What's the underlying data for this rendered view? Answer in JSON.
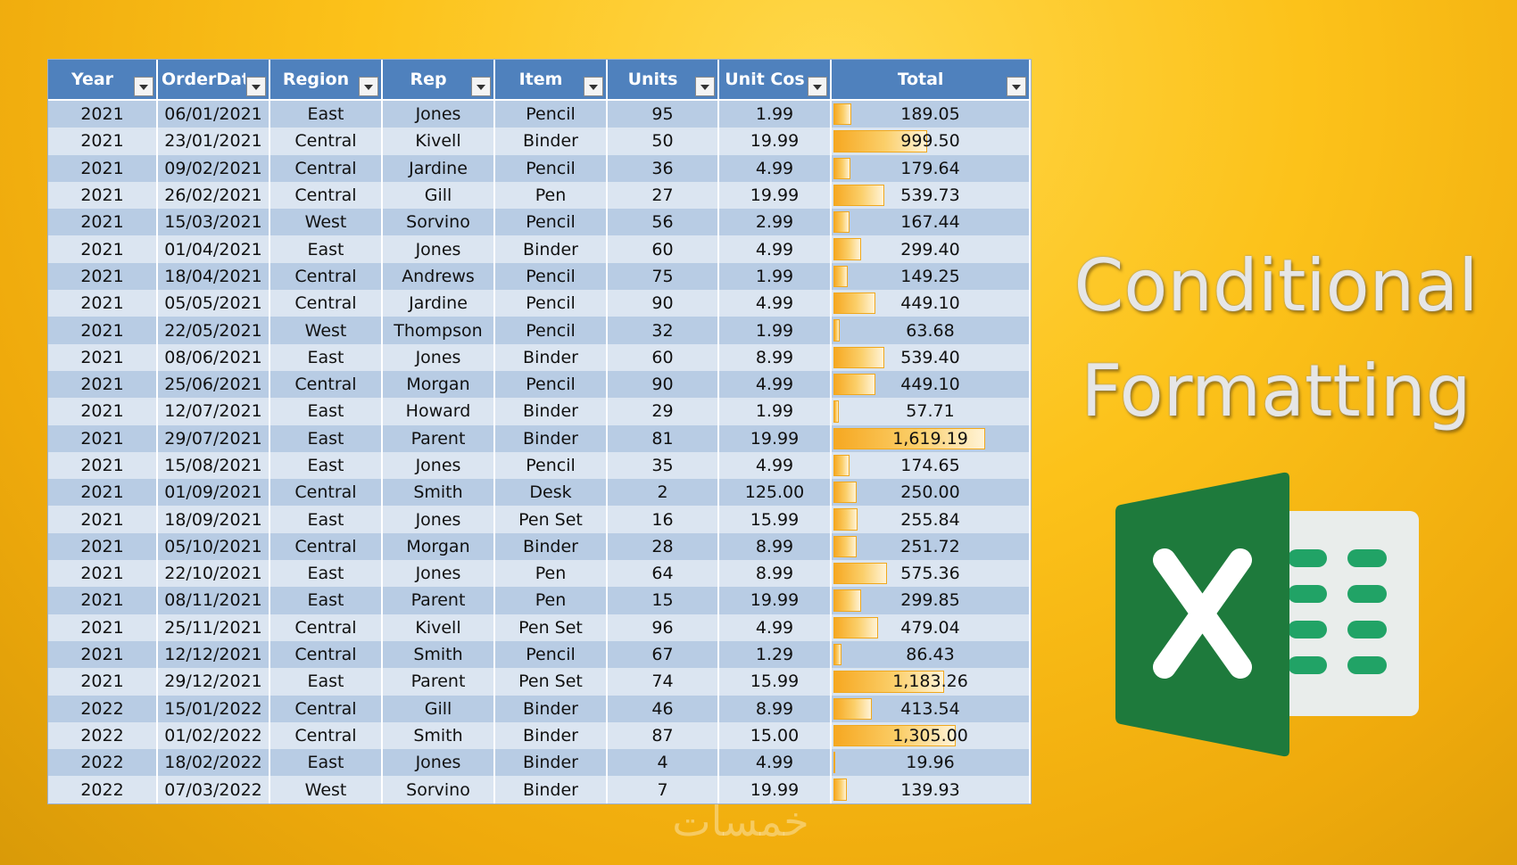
{
  "headers": [
    "Year",
    "OrderDat",
    "Region",
    "Rep",
    "Item",
    "Units",
    "Unit Cos",
    "Total"
  ],
  "rows": [
    [
      "2021",
      "06/01/2021",
      "East",
      "Jones",
      "Pencil",
      "95",
      "1.99",
      "189.05"
    ],
    [
      "2021",
      "23/01/2021",
      "Central",
      "Kivell",
      "Binder",
      "50",
      "19.99",
      "999.50"
    ],
    [
      "2021",
      "09/02/2021",
      "Central",
      "Jardine",
      "Pencil",
      "36",
      "4.99",
      "179.64"
    ],
    [
      "2021",
      "26/02/2021",
      "Central",
      "Gill",
      "Pen",
      "27",
      "19.99",
      "539.73"
    ],
    [
      "2021",
      "15/03/2021",
      "West",
      "Sorvino",
      "Pencil",
      "56",
      "2.99",
      "167.44"
    ],
    [
      "2021",
      "01/04/2021",
      "East",
      "Jones",
      "Binder",
      "60",
      "4.99",
      "299.40"
    ],
    [
      "2021",
      "18/04/2021",
      "Central",
      "Andrews",
      "Pencil",
      "75",
      "1.99",
      "149.25"
    ],
    [
      "2021",
      "05/05/2021",
      "Central",
      "Jardine",
      "Pencil",
      "90",
      "4.99",
      "449.10"
    ],
    [
      "2021",
      "22/05/2021",
      "West",
      "Thompson",
      "Pencil",
      "32",
      "1.99",
      "63.68"
    ],
    [
      "2021",
      "08/06/2021",
      "East",
      "Jones",
      "Binder",
      "60",
      "8.99",
      "539.40"
    ],
    [
      "2021",
      "25/06/2021",
      "Central",
      "Morgan",
      "Pencil",
      "90",
      "4.99",
      "449.10"
    ],
    [
      "2021",
      "12/07/2021",
      "East",
      "Howard",
      "Binder",
      "29",
      "1.99",
      "57.71"
    ],
    [
      "2021",
      "29/07/2021",
      "East",
      "Parent",
      "Binder",
      "81",
      "19.99",
      "1,619.19"
    ],
    [
      "2021",
      "15/08/2021",
      "East",
      "Jones",
      "Pencil",
      "35",
      "4.99",
      "174.65"
    ],
    [
      "2021",
      "01/09/2021",
      "Central",
      "Smith",
      "Desk",
      "2",
      "125.00",
      "250.00"
    ],
    [
      "2021",
      "18/09/2021",
      "East",
      "Jones",
      "Pen Set",
      "16",
      "15.99",
      "255.84"
    ],
    [
      "2021",
      "05/10/2021",
      "Central",
      "Morgan",
      "Binder",
      "28",
      "8.99",
      "251.72"
    ],
    [
      "2021",
      "22/10/2021",
      "East",
      "Jones",
      "Pen",
      "64",
      "8.99",
      "575.36"
    ],
    [
      "2021",
      "08/11/2021",
      "East",
      "Parent",
      "Pen",
      "15",
      "19.99",
      "299.85"
    ],
    [
      "2021",
      "25/11/2021",
      "Central",
      "Kivell",
      "Pen Set",
      "96",
      "4.99",
      "479.04"
    ],
    [
      "2021",
      "12/12/2021",
      "Central",
      "Smith",
      "Pencil",
      "67",
      "1.29",
      "86.43"
    ],
    [
      "2021",
      "29/12/2021",
      "East",
      "Parent",
      "Pen Set",
      "74",
      "15.99",
      "1,183.26"
    ],
    [
      "2022",
      "15/01/2022",
      "Central",
      "Gill",
      "Binder",
      "46",
      "8.99",
      "413.54"
    ],
    [
      "2022",
      "01/02/2022",
      "Central",
      "Smith",
      "Binder",
      "87",
      "15.00",
      "1,305.00"
    ],
    [
      "2022",
      "18/02/2022",
      "East",
      "Jones",
      "Binder",
      "4",
      "4.99",
      "19.96"
    ],
    [
      "2022",
      "07/03/2022",
      "West",
      "Sorvino",
      "Binder",
      "7",
      "19.99",
      "139.93"
    ]
  ],
  "title_lines": [
    "Conditional",
    "Formatting"
  ],
  "watermark": "خمسات",
  "colors": {
    "header_bg": "#4f81bd",
    "row_band_dark": "#b8cce4",
    "row_band_light": "#dbe5f1",
    "databar": "#f6a821",
    "excel_dark_green": "#1e7a3c",
    "excel_green": "#21a366"
  },
  "icons": {
    "filter": "dropdown-arrow-icon",
    "logo": "excel-logo-icon"
  }
}
